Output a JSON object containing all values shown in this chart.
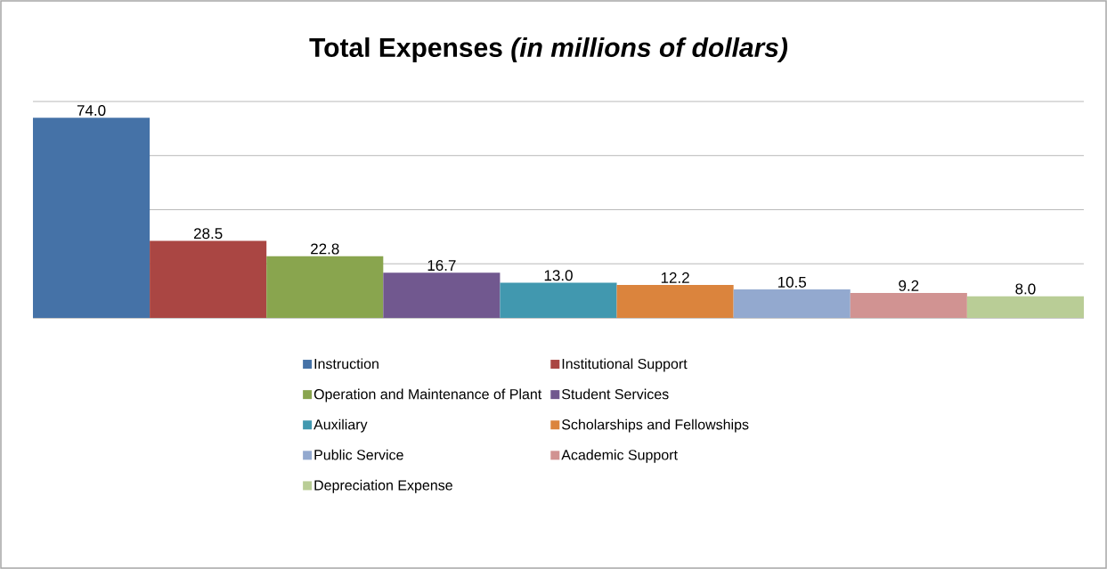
{
  "chart_data": {
    "type": "bar",
    "title": "Total Expenses *(in millions of dollars)*",
    "categories": [
      null
    ],
    "series": [
      {
        "name": "Instruction",
        "color": "#4572a7",
        "values": [
          74.0
        ],
        "value_labels": [
          "74.0"
        ]
      },
      {
        "name": "Institutional Support",
        "color": "#aa4643",
        "values": [
          28.5
        ],
        "value_labels": [
          "28.5"
        ]
      },
      {
        "name": "Operation and Maintenance of Plant",
        "color": "#89a54e",
        "values": [
          22.8
        ],
        "value_labels": [
          "22.8"
        ]
      },
      {
        "name": "Student Services",
        "color": "#71588f",
        "values": [
          16.7
        ],
        "value_labels": [
          "16.7"
        ]
      },
      {
        "name": "Auxiliary",
        "color": "#4198af",
        "values": [
          13.0
        ],
        "value_labels": [
          "13.0"
        ]
      },
      {
        "name": "Scholarships and Fellowships",
        "color": "#db843d",
        "values": [
          12.2
        ],
        "value_labels": [
          "12.2"
        ]
      },
      {
        "name": "Public Service",
        "color": "#93a9cf",
        "values": [
          10.5
        ],
        "value_labels": [
          "10.5"
        ]
      },
      {
        "name": "Academic Support",
        "color": "#d19392",
        "values": [
          9.2
        ],
        "value_labels": [
          "9.2"
        ]
      },
      {
        "name": "Depreciation Expense",
        "color": "#b9cd96",
        "values": [
          8.0
        ],
        "value_labels": [
          "8.0"
        ]
      }
    ],
    "grid": "y",
    "legend": "bottom"
  }
}
